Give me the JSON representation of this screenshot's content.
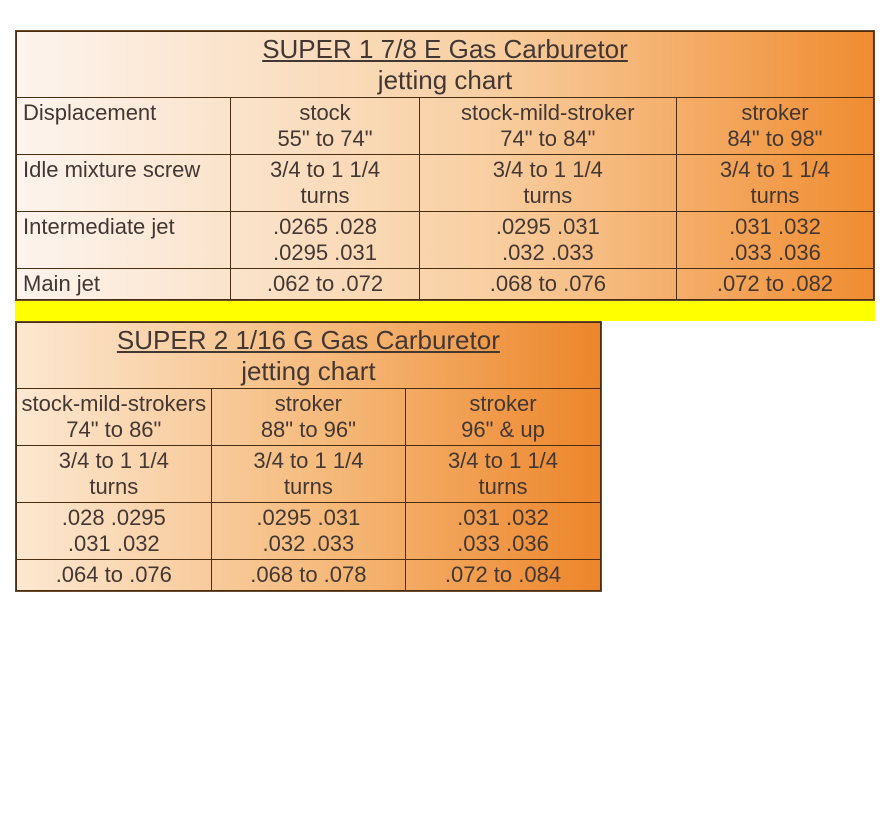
{
  "colors": {
    "text": "#433734",
    "border": "#4a2e12",
    "divider": "#ffff00",
    "grad1_start": "#fdf4ee",
    "grad1_mid": "#f8cfa2",
    "grad1_end": "#f08c30",
    "grad2_start": "#fce8d2",
    "grad2_mid": "#f5b878",
    "grad2_end": "#ed852a"
  },
  "fonts": {
    "title_pt": 26,
    "cell_pt": 22
  },
  "table1": {
    "title_line1": "SUPER 1 7/8 E Gas Carburetor",
    "title_line2": "jetting chart",
    "columns": [
      {
        "label1": "stock",
        "label2": "55\" to 74\""
      },
      {
        "label1": "stock-mild-stroker",
        "label2": "74\" to 84\""
      },
      {
        "label1": "stroker",
        "label2": "84\" to 98\""
      }
    ],
    "rows": {
      "displacement": "Displacement",
      "idle": "Idle mixture screw",
      "intermediate": "Intermediate jet",
      "main": "Main jet"
    },
    "idle": [
      {
        "l1": "3/4 to 1 1/4",
        "l2": "turns"
      },
      {
        "l1": "3/4 to 1 1/4",
        "l2": "turns"
      },
      {
        "l1": "3/4 to 1 1/4",
        "l2": "turns"
      }
    ],
    "intermediate": [
      {
        "l1": ".0265 .028",
        "l2": ".0295 .031"
      },
      {
        "l1": ".0295 .031",
        "l2": ".032 .033"
      },
      {
        "l1": ".031 .032",
        "l2": ".033 .036"
      }
    ],
    "main": [
      ".062 to .072",
      ".068 to .076",
      ".072 to .082"
    ]
  },
  "table2": {
    "title_line1": "SUPER 2 1/16 G Gas Carburetor",
    "title_line2": "jetting chart",
    "columns": [
      {
        "label1": "stock-mild-strokers",
        "label2": "74\" to 86\""
      },
      {
        "label1": "stroker",
        "label2": "88\" to 96\""
      },
      {
        "label1": "stroker",
        "label2": "96\" & up"
      }
    ],
    "idle": [
      {
        "l1": "3/4 to 1 1/4",
        "l2": "turns"
      },
      {
        "l1": "3/4 to 1 1/4",
        "l2": "turns"
      },
      {
        "l1": "3/4 to 1 1/4",
        "l2": "turns"
      }
    ],
    "intermediate": [
      {
        "l1": ".028 .0295",
        "l2": ".031 .032"
      },
      {
        "l1": ".0295 .031",
        "l2": ".032 .033"
      },
      {
        "l1": ".031 .032",
        "l2": ".033 .036"
      }
    ],
    "main": [
      ".064 to .076",
      ".068 to .078",
      ".072 to .084"
    ]
  }
}
